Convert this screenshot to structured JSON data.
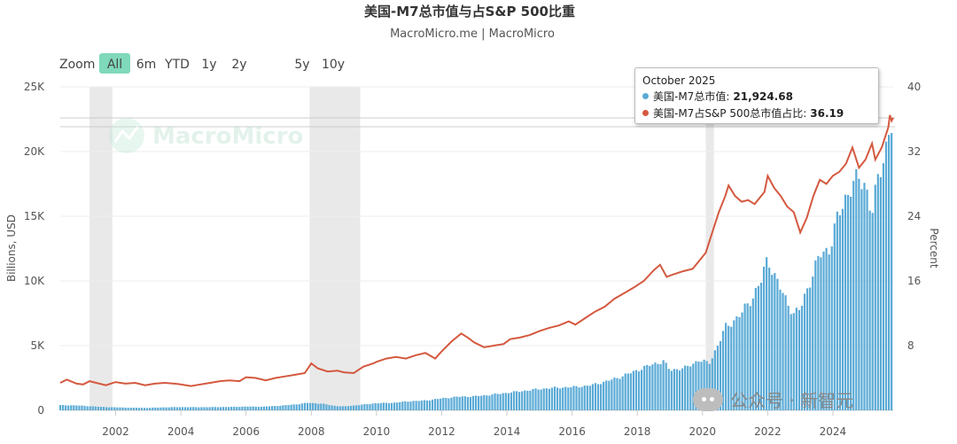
{
  "header": {
    "title": "美国-M7总市值与占S&P 500比重",
    "subtitle": "MacroMicro.me | MacroMicro"
  },
  "range_selector": {
    "zoom_label": "Zoom",
    "buttons": [
      "All",
      "6m",
      "YTD",
      "1y",
      "2y",
      "5y",
      "10y"
    ],
    "selected": "All"
  },
  "watermark": {
    "text": "MacroMicro"
  },
  "footer_watermark": {
    "text": "公众号 · 新智元"
  },
  "tooltip": {
    "date": "October 2025",
    "series1_label": "美国-M7总市值:",
    "series1_value": "21,924.68",
    "series2_label": "美国-M7占S&P 500总市值占比:",
    "series2_value": "36.19"
  },
  "colors": {
    "bars": "#5aaad6",
    "line": "#d4593f",
    "shading": "#e9e9e9",
    "zoom_selected": "#7fd9bb"
  },
  "chart_data": {
    "type": "bar+line",
    "title": "美国-M7总市值与占S&P 500比重",
    "subtitle": "MacroMicro.me | MacroMicro",
    "x_range": [
      2000.3,
      2025.85
    ],
    "x_ticks": [
      "2002",
      "2004",
      "2006",
      "2008",
      "2010",
      "2012",
      "2014",
      "2016",
      "2018",
      "2020",
      "2022",
      "2024"
    ],
    "y_left": {
      "label": "Billions, USD",
      "range": [
        0,
        25000
      ],
      "ticks": [
        "0",
        "5K",
        "10K",
        "15K",
        "20K",
        "25K"
      ]
    },
    "y_right": {
      "label": "Percent",
      "range": [
        0,
        40
      ],
      "ticks": [
        "8",
        "16",
        "24",
        "32",
        "40"
      ]
    },
    "shaded_periods": [
      [
        2001.2,
        2001.9
      ],
      [
        2007.95,
        2009.5
      ],
      [
        2020.1,
        2020.35
      ]
    ],
    "series": [
      {
        "name": "美国-M7总市值",
        "type": "bar",
        "axis": "left",
        "points": [
          [
            2000.3,
            400
          ],
          [
            2000.8,
            380
          ],
          [
            2001.2,
            320
          ],
          [
            2001.6,
            260
          ],
          [
            2002.0,
            230
          ],
          [
            2002.5,
            200
          ],
          [
            2003.0,
            190
          ],
          [
            2003.5,
            230
          ],
          [
            2004.0,
            250
          ],
          [
            2004.5,
            240
          ],
          [
            2005.0,
            250
          ],
          [
            2005.5,
            260
          ],
          [
            2006.0,
            290
          ],
          [
            2006.5,
            280
          ],
          [
            2007.0,
            350
          ],
          [
            2007.5,
            450
          ],
          [
            2007.9,
            580
          ],
          [
            2008.3,
            520
          ],
          [
            2008.7,
            350
          ],
          [
            2009.0,
            300
          ],
          [
            2009.5,
            420
          ],
          [
            2010.0,
            550
          ],
          [
            2010.5,
            580
          ],
          [
            2011.0,
            700
          ],
          [
            2011.5,
            760
          ],
          [
            2012.0,
            920
          ],
          [
            2012.5,
            1050
          ],
          [
            2013.0,
            1080
          ],
          [
            2013.5,
            1200
          ],
          [
            2014.0,
            1350
          ],
          [
            2014.5,
            1500
          ],
          [
            2015.0,
            1650
          ],
          [
            2015.5,
            1750
          ],
          [
            2016.0,
            1800
          ],
          [
            2016.5,
            1900
          ],
          [
            2017.0,
            2200
          ],
          [
            2017.5,
            2600
          ],
          [
            2018.0,
            3100
          ],
          [
            2018.4,
            3500
          ],
          [
            2018.8,
            3800
          ],
          [
            2019.0,
            3100
          ],
          [
            2019.5,
            3300
          ],
          [
            2019.9,
            3900
          ],
          [
            2020.2,
            3600
          ],
          [
            2020.5,
            5200
          ],
          [
            2020.7,
            6400
          ],
          [
            2020.9,
            6800
          ],
          [
            2021.2,
            7500
          ],
          [
            2021.5,
            8600
          ],
          [
            2021.8,
            10000
          ],
          [
            2022.0,
            11800
          ],
          [
            2022.2,
            10500
          ],
          [
            2022.5,
            8800
          ],
          [
            2022.8,
            7500
          ],
          [
            2023.0,
            7800
          ],
          [
            2023.3,
            10000
          ],
          [
            2023.6,
            12000
          ],
          [
            2023.9,
            12500
          ],
          [
            2024.1,
            14500
          ],
          [
            2024.4,
            16500
          ],
          [
            2024.6,
            17500
          ],
          [
            2024.8,
            17800
          ],
          [
            2025.0,
            17500
          ],
          [
            2025.2,
            15200
          ],
          [
            2025.4,
            18000
          ],
          [
            2025.6,
            20000
          ],
          [
            2025.75,
            22000
          ],
          [
            2025.85,
            21925
          ]
        ]
      },
      {
        "name": "美国-M7占S&P 500总市值占比",
        "type": "line",
        "axis": "right",
        "points": [
          [
            2000.3,
            3.4
          ],
          [
            2000.5,
            3.8
          ],
          [
            2000.8,
            3.3
          ],
          [
            2001.0,
            3.2
          ],
          [
            2001.2,
            3.6
          ],
          [
            2001.5,
            3.3
          ],
          [
            2001.7,
            3.1
          ],
          [
            2002.0,
            3.5
          ],
          [
            2002.3,
            3.3
          ],
          [
            2002.6,
            3.4
          ],
          [
            2002.9,
            3.1
          ],
          [
            2003.2,
            3.3
          ],
          [
            2003.5,
            3.4
          ],
          [
            2003.8,
            3.3
          ],
          [
            2004.0,
            3.2
          ],
          [
            2004.3,
            3.0
          ],
          [
            2004.6,
            3.2
          ],
          [
            2004.9,
            3.4
          ],
          [
            2005.2,
            3.6
          ],
          [
            2005.5,
            3.7
          ],
          [
            2005.8,
            3.6
          ],
          [
            2006.0,
            4.1
          ],
          [
            2006.3,
            4.0
          ],
          [
            2006.6,
            3.7
          ],
          [
            2006.9,
            4.0
          ],
          [
            2007.2,
            4.2
          ],
          [
            2007.5,
            4.4
          ],
          [
            2007.8,
            4.6
          ],
          [
            2008.0,
            5.8
          ],
          [
            2008.2,
            5.2
          ],
          [
            2008.5,
            4.8
          ],
          [
            2008.8,
            4.9
          ],
          [
            2009.0,
            4.7
          ],
          [
            2009.3,
            4.6
          ],
          [
            2009.6,
            5.4
          ],
          [
            2009.9,
            5.8
          ],
          [
            2010.0,
            6.0
          ],
          [
            2010.3,
            6.4
          ],
          [
            2010.6,
            6.6
          ],
          [
            2010.9,
            6.4
          ],
          [
            2011.2,
            6.8
          ],
          [
            2011.5,
            7.1
          ],
          [
            2011.8,
            6.4
          ],
          [
            2012.0,
            7.3
          ],
          [
            2012.3,
            8.5
          ],
          [
            2012.6,
            9.5
          ],
          [
            2012.8,
            9.0
          ],
          [
            2013.0,
            8.4
          ],
          [
            2013.3,
            7.8
          ],
          [
            2013.6,
            8.0
          ],
          [
            2013.9,
            8.2
          ],
          [
            2014.1,
            8.8
          ],
          [
            2014.4,
            9.0
          ],
          [
            2014.7,
            9.3
          ],
          [
            2015.0,
            9.8
          ],
          [
            2015.3,
            10.2
          ],
          [
            2015.6,
            10.5
          ],
          [
            2015.9,
            11.0
          ],
          [
            2016.1,
            10.6
          ],
          [
            2016.4,
            11.4
          ],
          [
            2016.7,
            12.2
          ],
          [
            2017.0,
            12.8
          ],
          [
            2017.3,
            13.8
          ],
          [
            2017.6,
            14.5
          ],
          [
            2017.9,
            15.2
          ],
          [
            2018.2,
            16.0
          ],
          [
            2018.5,
            17.3
          ],
          [
            2018.7,
            18.0
          ],
          [
            2018.9,
            16.5
          ],
          [
            2019.1,
            16.8
          ],
          [
            2019.4,
            17.2
          ],
          [
            2019.7,
            17.5
          ],
          [
            2019.9,
            18.5
          ],
          [
            2020.1,
            19.5
          ],
          [
            2020.3,
            22.0
          ],
          [
            2020.5,
            24.5
          ],
          [
            2020.7,
            26.5
          ],
          [
            2020.8,
            27.8
          ],
          [
            2021.0,
            26.5
          ],
          [
            2021.2,
            25.8
          ],
          [
            2021.4,
            26.0
          ],
          [
            2021.6,
            25.5
          ],
          [
            2021.9,
            27.0
          ],
          [
            2022.0,
            29.0
          ],
          [
            2022.2,
            27.5
          ],
          [
            2022.4,
            26.5
          ],
          [
            2022.6,
            25.2
          ],
          [
            2022.8,
            24.5
          ],
          [
            2023.0,
            22.0
          ],
          [
            2023.2,
            23.8
          ],
          [
            2023.4,
            26.5
          ],
          [
            2023.6,
            28.5
          ],
          [
            2023.8,
            28.0
          ],
          [
            2024.0,
            29.0
          ],
          [
            2024.2,
            29.5
          ],
          [
            2024.4,
            30.5
          ],
          [
            2024.6,
            32.5
          ],
          [
            2024.8,
            30.0
          ],
          [
            2025.0,
            31.0
          ],
          [
            2025.2,
            33.0
          ],
          [
            2025.3,
            31.0
          ],
          [
            2025.5,
            32.5
          ],
          [
            2025.7,
            35.0
          ],
          [
            2025.75,
            36.5
          ],
          [
            2025.8,
            35.8
          ],
          [
            2025.85,
            36.19
          ]
        ]
      }
    ],
    "legend": "tooltip-top-right"
  }
}
